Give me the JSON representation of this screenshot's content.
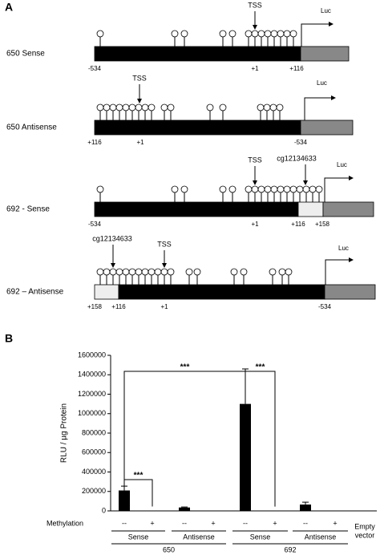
{
  "panel_a": {
    "label": "A",
    "constructs": [
      {
        "name": "650 Sense",
        "tss": "TSS",
        "reporter": "Luc",
        "positions": [
          "-534",
          "+1",
          "+116"
        ]
      },
      {
        "name": "650 Antisense",
        "tss": "TSS",
        "reporter": "Luc",
        "positions": [
          "+116",
          "+1",
          "-534"
        ]
      },
      {
        "name": "692 - Sense",
        "tss": "TSS",
        "reporter": "Luc",
        "cpg": "cg12134633",
        "positions": [
          "-534",
          "+1",
          "+116",
          "+158"
        ]
      },
      {
        "name": "692 – Antisense",
        "tss": "TSS",
        "reporter": "Luc",
        "cpg": "cg12134633",
        "positions": [
          "+158",
          "+116",
          "+1",
          "-534"
        ]
      }
    ]
  },
  "chart_data": {
    "type": "bar",
    "panel_label": "B",
    "y_label": "RLU / µg Protein",
    "row_label": "Methylation",
    "categories": [
      "--",
      "+",
      "--",
      "+",
      "--",
      "+",
      "--",
      "+",
      null
    ],
    "values": [
      210000,
      4000,
      35000,
      3000,
      1100000,
      3000,
      65000,
      3000,
      2000
    ],
    "errors": [
      45000,
      null,
      5000,
      null,
      360000,
      null,
      25000,
      null,
      null
    ],
    "color": "#000000",
    "ylim": [
      0,
      1600000
    ],
    "yticks": [
      0,
      200000,
      400000,
      600000,
      800000,
      1000000,
      1200000,
      1400000,
      1600000
    ],
    "groups": [
      {
        "label": "Sense",
        "span": [
          0,
          1
        ]
      },
      {
        "label": "Antisense",
        "span": [
          2,
          3
        ]
      },
      {
        "label": "Sense",
        "span": [
          4,
          5
        ]
      },
      {
        "label": "Antisense",
        "span": [
          6,
          7
        ]
      },
      {
        "label": [
          "Empty",
          "vector"
        ],
        "span": [
          8,
          8
        ]
      }
    ],
    "outer_groups": [
      {
        "label": "650",
        "span": [
          0,
          3
        ]
      },
      {
        "label": "692",
        "span": [
          4,
          7
        ]
      }
    ],
    "significance": [
      {
        "label": "***",
        "bars": [
          0,
          1
        ]
      },
      {
        "label": "***",
        "bars": [
          0,
          4
        ]
      },
      {
        "label": "***",
        "bars": [
          4,
          5
        ]
      }
    ]
  }
}
